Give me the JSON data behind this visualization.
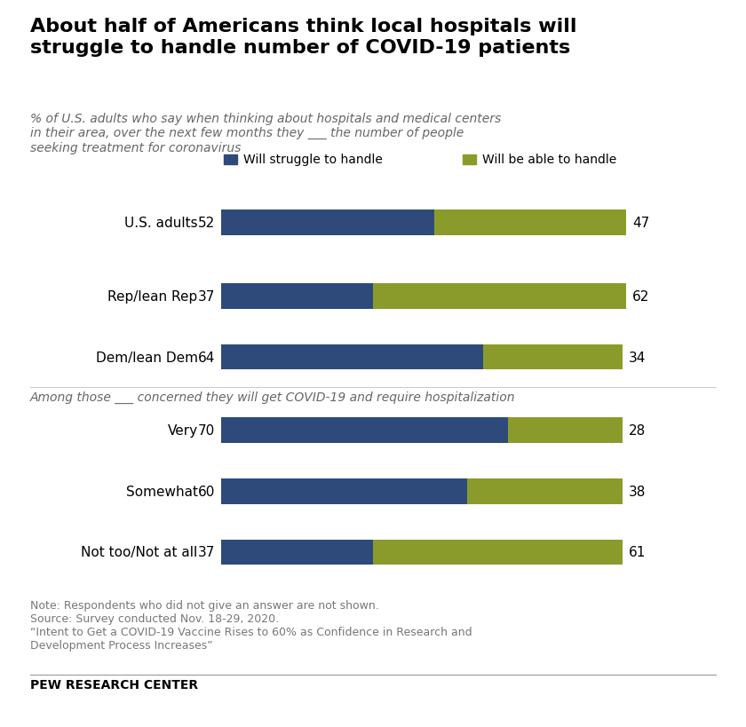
{
  "title": "About half of Americans think local hospitals will\nstruggle to handle number of COVID-19 patients",
  "subtitle": "% of U.S. adults who say when thinking about hospitals and medical centers\nin their area, over the next few months they ___ the number of people\nseeking treatment for coronavirus",
  "categories": [
    "U.S. adults",
    "Rep/lean Rep",
    "Dem/lean Dem",
    "Very",
    "Somewhat",
    "Not too/Not at all"
  ],
  "struggle": [
    52,
    37,
    64,
    70,
    60,
    37
  ],
  "able": [
    47,
    62,
    34,
    28,
    38,
    61
  ],
  "color_struggle": "#2E4A7A",
  "color_able": "#8B9B2B",
  "legend_labels": [
    "Will struggle to handle",
    "Will be able to handle"
  ],
  "section2_label": "Among those ___ concerned they will get COVID-19 and require hospitalization",
  "note_lines": [
    "Note: Respondents who did not give an answer are not shown.",
    "Source: Survey conducted Nov. 18-29, 2020.",
    "“Intent to Get a COVID-19 Vaccine Rises to 60% as Confidence in Research and",
    "Development Process Increases”"
  ],
  "footer": "PEW RESEARCH CENTER",
  "background_color": "#FFFFFF"
}
